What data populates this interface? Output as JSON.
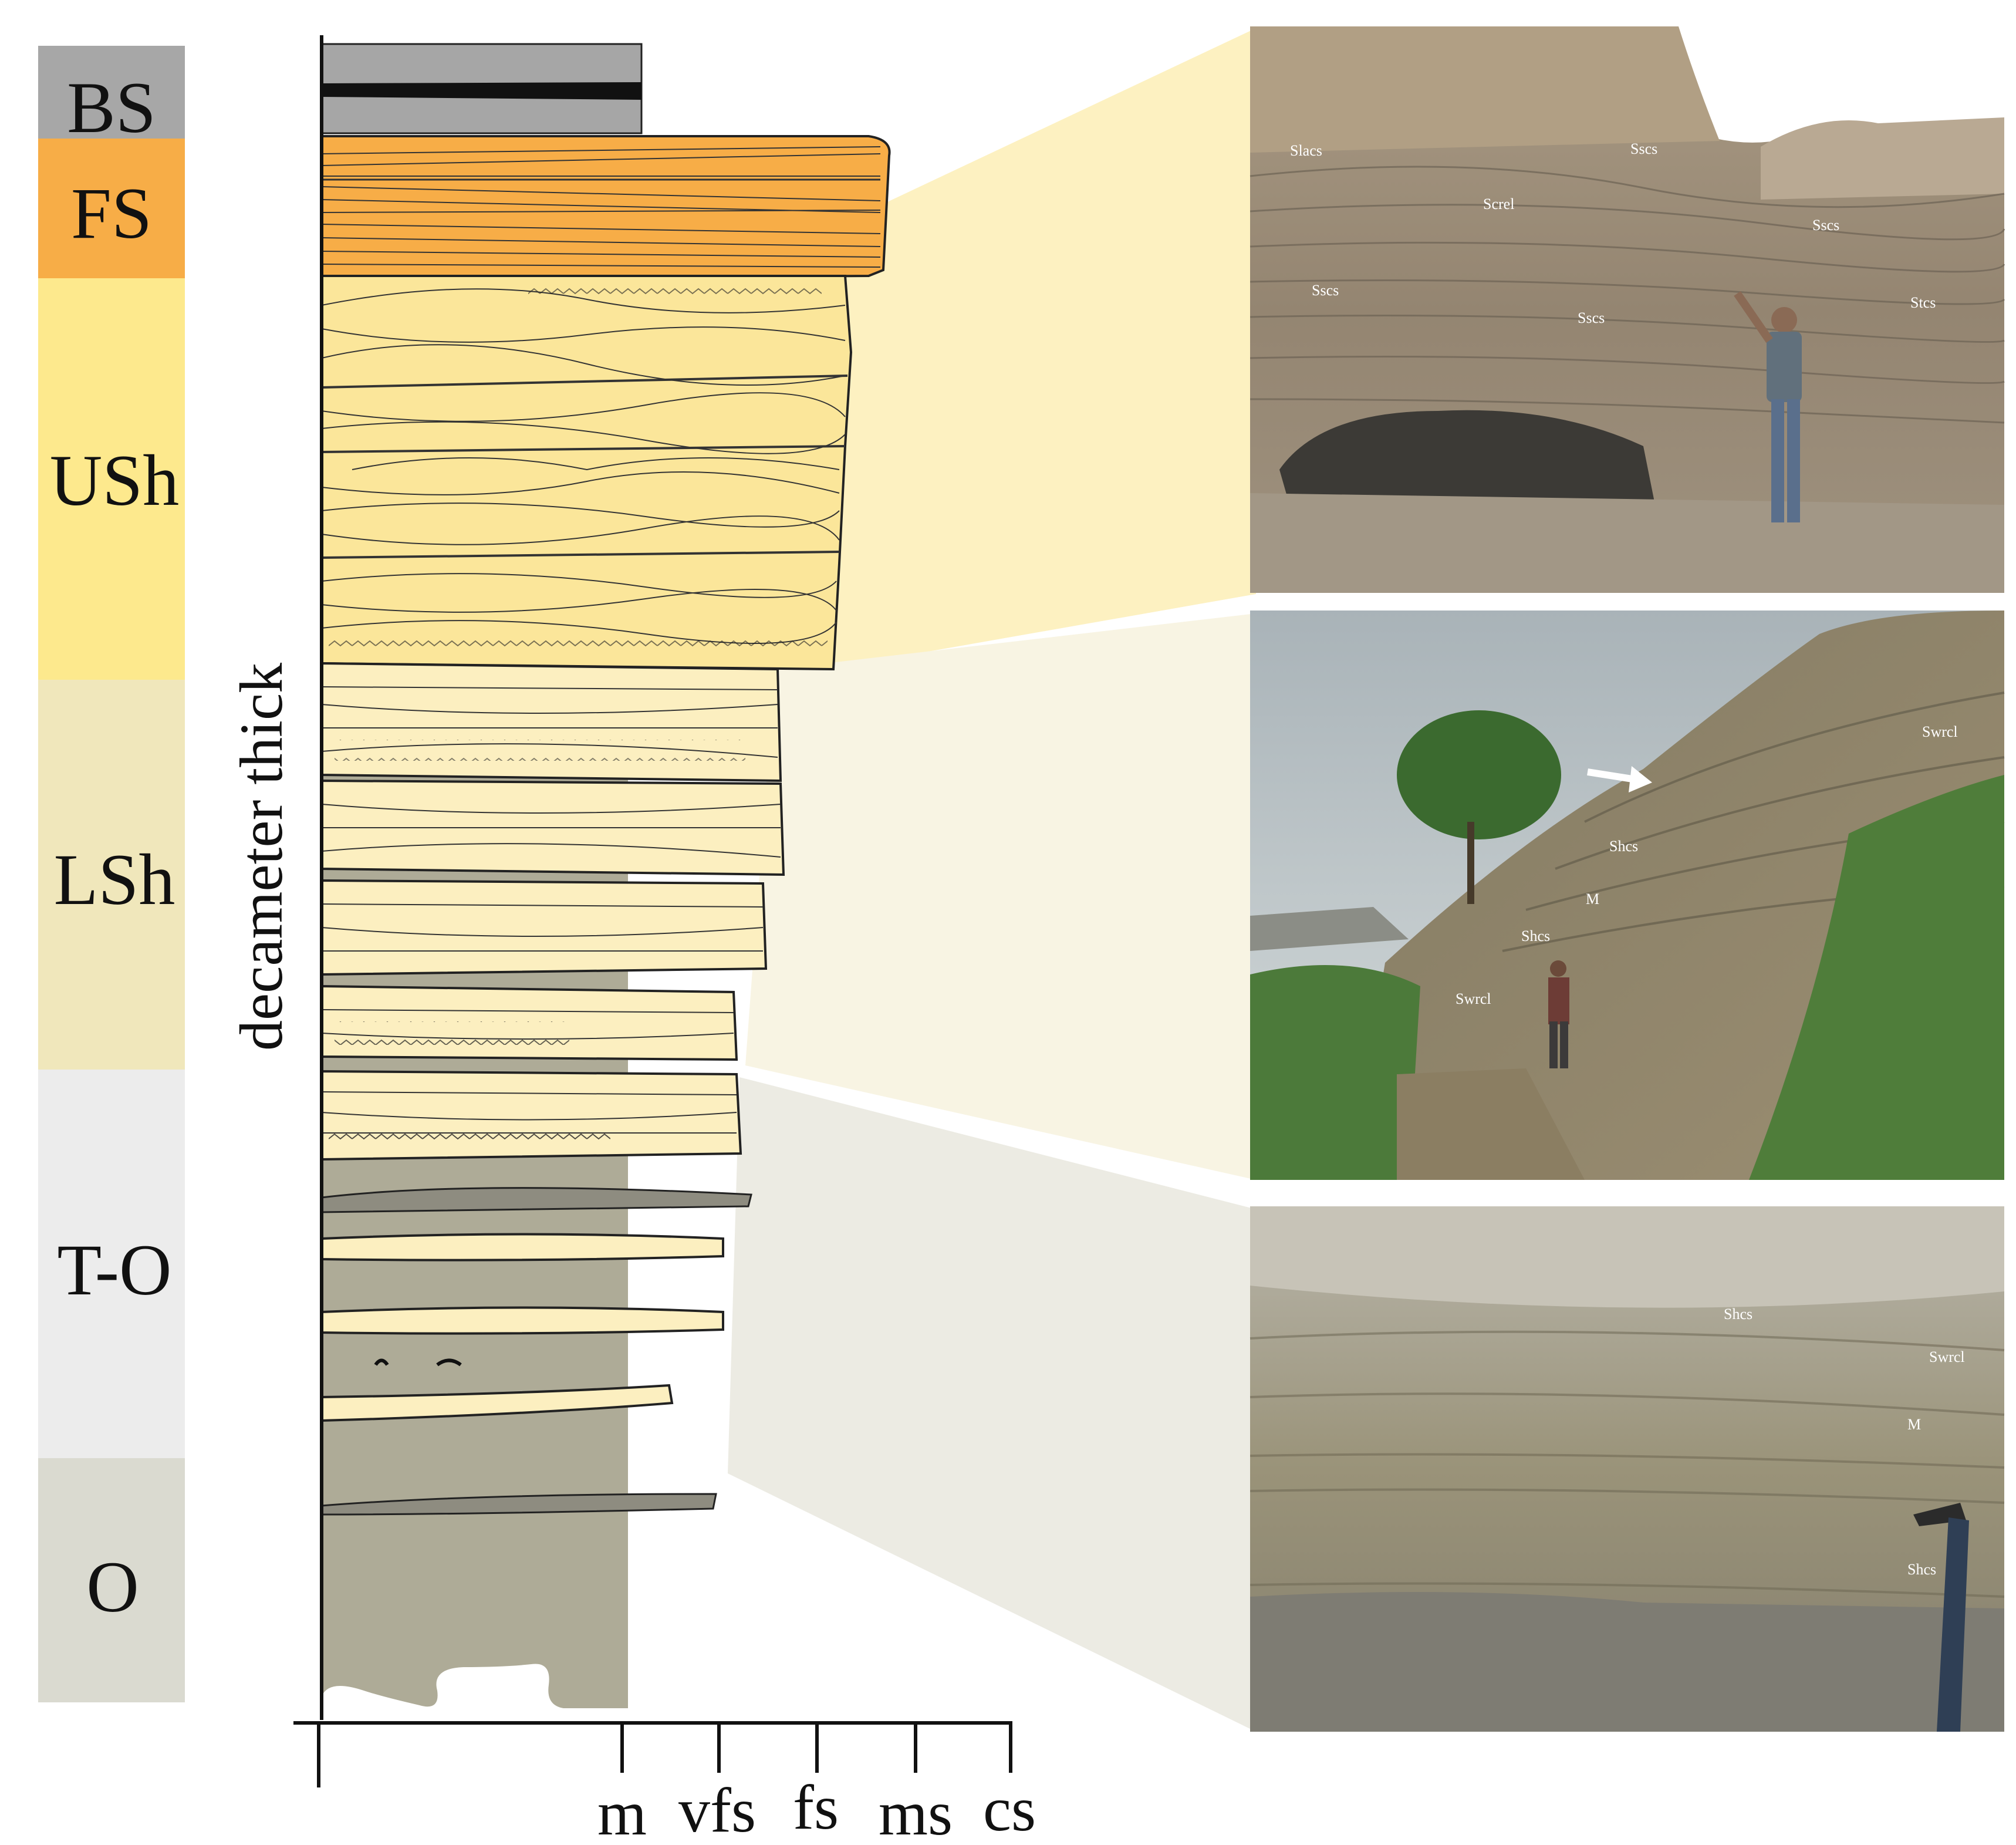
{
  "facies": [
    {
      "id": "BS",
      "label": "BS",
      "color": "#a7a7a7"
    },
    {
      "id": "FS",
      "label": "FS",
      "color": "#f7ad47"
    },
    {
      "id": "USh",
      "label": "USh",
      "color": "#fde98d"
    },
    {
      "id": "LSh",
      "label": "LSh",
      "color": "#f0e7bb"
    },
    {
      "id": "T-O",
      "label": "T-O",
      "color": "#ececec"
    },
    {
      "id": "O",
      "label": "O",
      "color": "#dadad0"
    }
  ],
  "vertical_label": "decameter thick",
  "grain_size_axis": [
    "m",
    "vfs",
    "fs",
    "ms",
    "cs"
  ],
  "colors": {
    "mudstone": "#aeab97",
    "black_shale": "#111111",
    "orange_sand": "#f7ad47",
    "yellow_sand": "#fbe69a",
    "pale_sand": "#fcefc0"
  },
  "photos": [
    {
      "id": "upper-shoreface-photo",
      "labels": [
        "Slacs",
        "Sscs",
        "Screl",
        "Sscs",
        "Sscs",
        "Sscs",
        "Stcs"
      ]
    },
    {
      "id": "lower-shoreface-photo",
      "labels": [
        "Swrcl",
        "Shcs",
        "M",
        "Shcs",
        "Swrcl"
      ]
    },
    {
      "id": "transition-offshore-photo",
      "labels": [
        "Shcs",
        "Swrcl",
        "M",
        "Shcs"
      ]
    }
  ]
}
